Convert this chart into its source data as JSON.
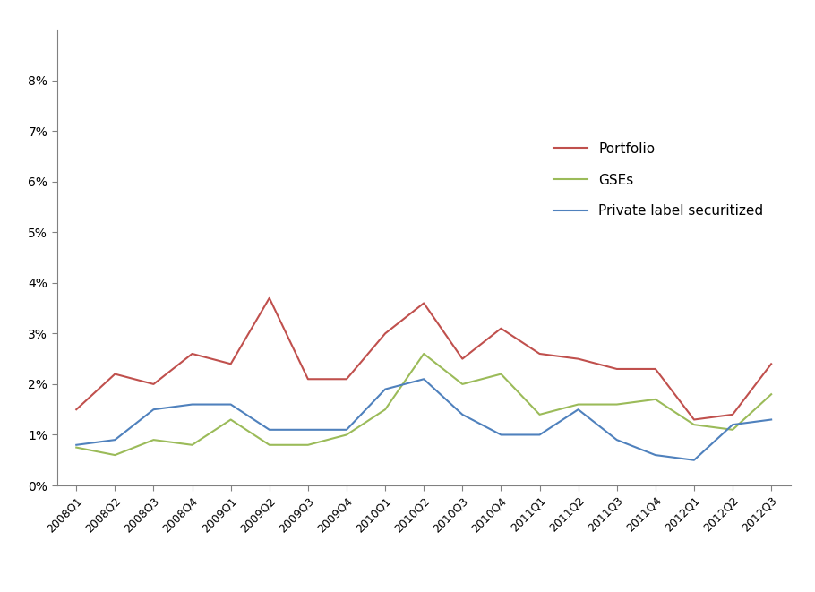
{
  "categories": [
    "2008Q1",
    "2008Q2",
    "2008Q3",
    "2008Q4",
    "2009Q1",
    "2009Q2",
    "2009Q3",
    "2009Q4",
    "2010Q1",
    "2010Q2",
    "2010Q3",
    "2010Q4",
    "2011Q1",
    "2011Q2",
    "2011Q3",
    "2011Q4",
    "2012Q1",
    "2012Q2",
    "2012Q3"
  ],
  "portfolio": [
    0.015,
    0.022,
    0.02,
    0.026,
    0.024,
    0.037,
    0.021,
    0.021,
    0.03,
    0.036,
    0.025,
    0.031,
    0.026,
    0.025,
    0.023,
    0.023,
    0.013,
    0.014,
    0.024
  ],
  "gses": [
    0.0075,
    0.006,
    0.009,
    0.008,
    0.013,
    0.008,
    0.008,
    0.01,
    0.015,
    0.026,
    0.02,
    0.022,
    0.014,
    0.016,
    0.016,
    0.017,
    0.012,
    0.011,
    0.018
  ],
  "private_label": [
    0.008,
    0.009,
    0.015,
    0.016,
    0.016,
    0.011,
    0.011,
    0.011,
    0.019,
    0.021,
    0.014,
    0.01,
    0.01,
    0.015,
    0.009,
    0.006,
    0.005,
    0.012,
    0.013
  ],
  "portfolio_color": "#C0504D",
  "gses_color": "#9BBB59",
  "private_label_color": "#4F81BD",
  "legend_labels": [
    "Portfolio",
    "GSEs",
    "Private label securitized"
  ],
  "ylim": [
    0,
    0.09
  ],
  "yticks": [
    0.0,
    0.01,
    0.02,
    0.03,
    0.04,
    0.05,
    0.06,
    0.07,
    0.08
  ],
  "ytick_labels": [
    "0%",
    "1%",
    "2%",
    "3%",
    "4%",
    "5%",
    "6%",
    "7%",
    "8%"
  ]
}
